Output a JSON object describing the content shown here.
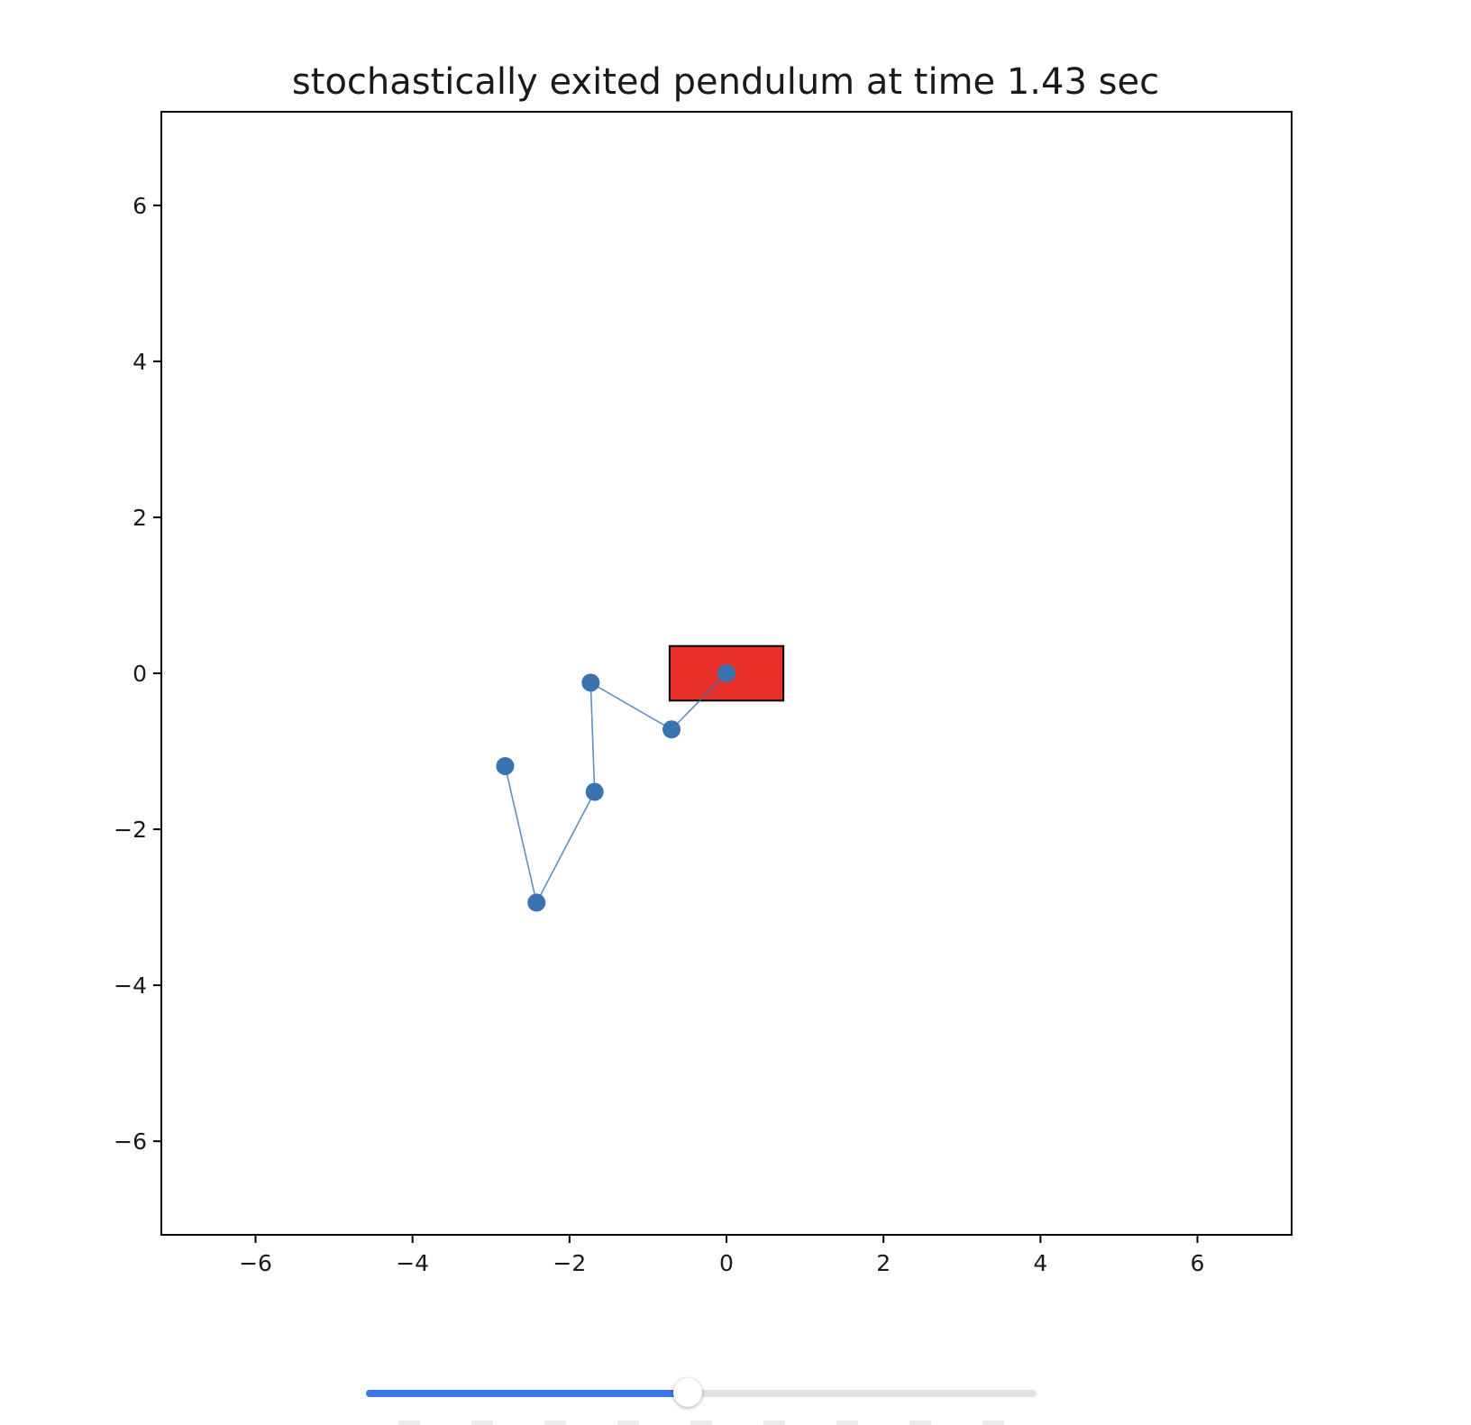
{
  "chart_data": {
    "type": "scatter",
    "title": "stochastically exited pendulum at time 1.43 sec",
    "xlabel": "",
    "ylabel": "",
    "xlim": [
      -7.2,
      7.2
    ],
    "ylim": [
      -7.2,
      7.2
    ],
    "xticks": [
      -6,
      -4,
      -2,
      0,
      2,
      4,
      6
    ],
    "yticks": [
      -6,
      -4,
      -2,
      0,
      2,
      4,
      6
    ],
    "xtick_labels": [
      "−6",
      "−4",
      "−2",
      "0",
      "2",
      "4",
      "6"
    ],
    "ytick_labels": [
      "−6",
      "−4",
      "−2",
      "0",
      "2",
      "4",
      "6"
    ],
    "grid": false,
    "series": [
      {
        "x": [
          0.0,
          -0.7,
          -1.73,
          -1.68,
          -2.42,
          -2.82
        ],
        "y": [
          0.0,
          -0.72,
          -0.12,
          -1.52,
          -2.94,
          -1.19
        ],
        "color": "#3a73b0",
        "style": "line-with-markers"
      }
    ],
    "cart": {
      "center": [
        0.0,
        0.0
      ],
      "width": 1.45,
      "height": 0.7,
      "color": "#e8302a"
    }
  },
  "slider": {
    "value": 0.48,
    "track_color": "#e2e2e2",
    "fill_color": "#3b78e7",
    "tick_count": 9
  }
}
